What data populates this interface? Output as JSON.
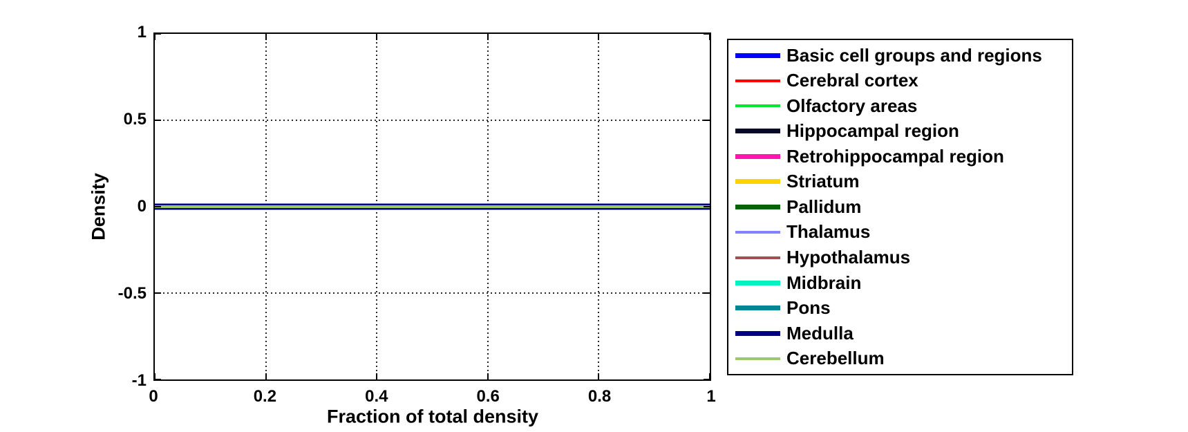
{
  "chart_data": {
    "type": "line",
    "title": "",
    "xlabel": "Fraction of total density",
    "ylabel": "Density",
    "xlim": [
      0,
      1
    ],
    "ylim": [
      -1,
      1
    ],
    "x_ticks": [
      0,
      0.2,
      0.4,
      0.6,
      0.8,
      1
    ],
    "y_ticks": [
      -1,
      -0.5,
      0,
      0.5,
      1
    ],
    "grid": true,
    "grid_style": "dotted",
    "legend_position": "outside-right",
    "series": [
      {
        "name": "Basic cell groups and regions",
        "color": "#0000FF",
        "width": "thick",
        "x": [
          0,
          1
        ],
        "y": [
          0,
          0
        ]
      },
      {
        "name": "Cerebral cortex",
        "color": "#FF0000",
        "width": "thin",
        "x": [
          0,
          1
        ],
        "y": [
          0,
          0
        ]
      },
      {
        "name": "Olfactory areas",
        "color": "#00E632",
        "width": "thin",
        "x": [
          0,
          1
        ],
        "y": [
          0,
          0
        ]
      },
      {
        "name": "Hippocampal region",
        "color": "#070729",
        "width": "thick",
        "x": [
          0,
          1
        ],
        "y": [
          0,
          0
        ]
      },
      {
        "name": "Retrohippocampal region",
        "color": "#FF17AC",
        "width": "thick",
        "x": [
          0,
          1
        ],
        "y": [
          0,
          0
        ]
      },
      {
        "name": "Striatum",
        "color": "#FFD300",
        "width": "thick",
        "x": [
          0,
          1
        ],
        "y": [
          0,
          0
        ]
      },
      {
        "name": "Pallidum",
        "color": "#066306",
        "width": "thick",
        "x": [
          0,
          1
        ],
        "y": [
          0,
          0
        ]
      },
      {
        "name": "Thalamus",
        "color": "#8282FF",
        "width": "thin",
        "x": [
          0,
          1
        ],
        "y": [
          0,
          0
        ]
      },
      {
        "name": "Hypothalamus",
        "color": "#A05252",
        "width": "thin",
        "x": [
          0,
          1
        ],
        "y": [
          0,
          0
        ]
      },
      {
        "name": "Midbrain",
        "color": "#00F2C3",
        "width": "thick",
        "x": [
          0,
          1
        ],
        "y": [
          0,
          0
        ]
      },
      {
        "name": "Pons",
        "color": "#008498",
        "width": "thick",
        "x": [
          0,
          1
        ],
        "y": [
          0,
          0
        ]
      },
      {
        "name": "Medulla",
        "color": "#000087",
        "width": "thick",
        "x": [
          0,
          1
        ],
        "y": [
          0,
          0
        ]
      },
      {
        "name": "Cerebellum",
        "color": "#99CC66",
        "width": "thin",
        "x": [
          0,
          1
        ],
        "y": [
          0,
          0
        ]
      }
    ]
  },
  "colors": {
    "background": "#FFFFFF",
    "axis": "#000000",
    "grid": "#262626",
    "text": "#000000"
  }
}
